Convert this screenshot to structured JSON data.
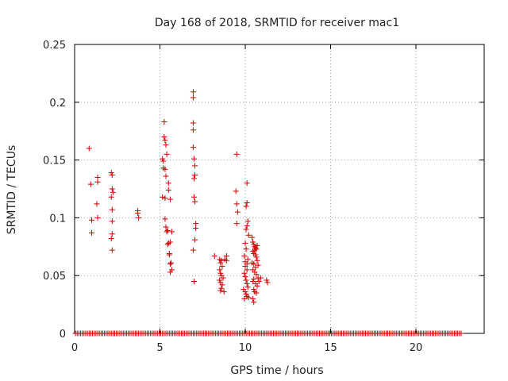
{
  "chart_data": {
    "type": "scatter",
    "title": "Day 168 of 2018, SRMTID for receiver mac1",
    "xlabel": "GPS time / hours",
    "ylabel": "SRMTID / TECUs",
    "xlim": [
      0,
      24
    ],
    "ylim": [
      0,
      0.25
    ],
    "xticks": [
      0,
      5,
      10,
      15,
      20
    ],
    "yticks": [
      0,
      0.05,
      0.1,
      0.15,
      0.2,
      0.25
    ],
    "xtick_labels": [
      "0",
      "5",
      "10",
      "15",
      "20"
    ],
    "ytick_labels": [
      "0",
      "0.05",
      "0.1",
      "0.15",
      "0.2",
      "0.25"
    ],
    "grid": true,
    "marker": "+",
    "color": "#cc0000",
    "baseline": {
      "y": 0,
      "x_start": 0.05,
      "x_end": 22.7,
      "step": 0.1
    },
    "series": [
      {
        "name": "mac1",
        "points": [
          [
            0.85,
            0.16
          ],
          [
            0.95,
            0.129
          ],
          [
            1.0,
            0.098
          ],
          [
            1.0,
            0.087
          ],
          [
            1.35,
            0.135
          ],
          [
            1.35,
            0.131
          ],
          [
            1.3,
            0.112
          ],
          [
            1.35,
            0.1
          ],
          [
            2.15,
            0.139
          ],
          [
            2.2,
            0.137
          ],
          [
            2.2,
            0.125
          ],
          [
            2.25,
            0.122
          ],
          [
            2.15,
            0.118
          ],
          [
            2.2,
            0.107
          ],
          [
            2.2,
            0.097
          ],
          [
            2.2,
            0.086
          ],
          [
            2.15,
            0.082
          ],
          [
            2.2,
            0.072
          ],
          [
            3.7,
            0.106
          ],
          [
            3.7,
            0.104
          ],
          [
            3.75,
            0.1
          ],
          [
            5.25,
            0.183
          ],
          [
            5.25,
            0.17
          ],
          [
            5.3,
            0.167
          ],
          [
            5.35,
            0.163
          ],
          [
            5.4,
            0.155
          ],
          [
            5.15,
            0.151
          ],
          [
            5.2,
            0.149
          ],
          [
            5.2,
            0.143
          ],
          [
            5.3,
            0.142
          ],
          [
            5.35,
            0.136
          ],
          [
            5.5,
            0.13
          ],
          [
            5.5,
            0.124
          ],
          [
            5.15,
            0.118
          ],
          [
            5.3,
            0.117
          ],
          [
            5.6,
            0.116
          ],
          [
            5.3,
            0.099
          ],
          [
            5.35,
            0.092
          ],
          [
            5.4,
            0.088
          ],
          [
            5.45,
            0.089
          ],
          [
            5.7,
            0.088
          ],
          [
            5.6,
            0.079
          ],
          [
            5.45,
            0.077
          ],
          [
            5.5,
            0.078
          ],
          [
            5.55,
            0.069
          ],
          [
            5.55,
            0.068
          ],
          [
            5.65,
            0.061
          ],
          [
            5.6,
            0.06
          ],
          [
            5.7,
            0.055
          ],
          [
            5.6,
            0.053
          ],
          [
            6.95,
            0.209
          ],
          [
            6.95,
            0.204
          ],
          [
            6.95,
            0.182
          ],
          [
            6.95,
            0.176
          ],
          [
            6.95,
            0.161
          ],
          [
            7.0,
            0.151
          ],
          [
            7.05,
            0.145
          ],
          [
            7.05,
            0.137
          ],
          [
            7.0,
            0.134
          ],
          [
            7.0,
            0.118
          ],
          [
            7.05,
            0.114
          ],
          [
            7.1,
            0.095
          ],
          [
            7.1,
            0.091
          ],
          [
            7.05,
            0.081
          ],
          [
            6.95,
            0.072
          ],
          [
            7.0,
            0.045
          ],
          [
            8.2,
            0.067
          ],
          [
            8.5,
            0.064
          ],
          [
            8.55,
            0.061
          ],
          [
            8.6,
            0.063
          ],
          [
            8.65,
            0.058
          ],
          [
            8.5,
            0.055
          ],
          [
            8.55,
            0.052
          ],
          [
            8.6,
            0.05
          ],
          [
            8.7,
            0.048
          ],
          [
            8.5,
            0.046
          ],
          [
            8.55,
            0.044
          ],
          [
            8.65,
            0.042
          ],
          [
            8.6,
            0.039
          ],
          [
            8.55,
            0.037
          ],
          [
            8.75,
            0.036
          ],
          [
            8.8,
            0.064
          ],
          [
            8.9,
            0.067
          ],
          [
            8.9,
            0.063
          ],
          [
            9.5,
            0.155
          ],
          [
            9.45,
            0.123
          ],
          [
            9.5,
            0.112
          ],
          [
            9.55,
            0.105
          ],
          [
            9.5,
            0.095
          ],
          [
            10.1,
            0.13
          ],
          [
            10.05,
            0.11
          ],
          [
            10.1,
            0.113
          ],
          [
            10.15,
            0.097
          ],
          [
            10.1,
            0.093
          ],
          [
            10.05,
            0.09
          ],
          [
            10.2,
            0.085
          ],
          [
            10.0,
            0.078
          ],
          [
            10.05,
            0.073
          ],
          [
            9.95,
            0.067
          ],
          [
            10.0,
            0.062
          ],
          [
            10.1,
            0.06
          ],
          [
            10.15,
            0.064
          ],
          [
            10.0,
            0.058
          ],
          [
            10.1,
            0.055
          ],
          [
            9.95,
            0.052
          ],
          [
            10.0,
            0.049
          ],
          [
            10.05,
            0.046
          ],
          [
            10.1,
            0.043
          ],
          [
            10.15,
            0.04
          ],
          [
            9.9,
            0.038
          ],
          [
            10.0,
            0.036
          ],
          [
            10.05,
            0.034
          ],
          [
            10.1,
            0.032
          ],
          [
            10.2,
            0.031
          ],
          [
            9.95,
            0.03
          ],
          [
            10.4,
            0.083
          ],
          [
            10.45,
            0.079
          ],
          [
            10.5,
            0.077
          ],
          [
            10.55,
            0.075
          ],
          [
            10.6,
            0.074
          ],
          [
            10.7,
            0.076
          ],
          [
            10.65,
            0.073
          ],
          [
            10.55,
            0.072
          ],
          [
            10.45,
            0.071
          ],
          [
            10.5,
            0.069
          ],
          [
            10.6,
            0.068
          ],
          [
            10.65,
            0.066
          ],
          [
            10.7,
            0.063
          ],
          [
            10.4,
            0.061
          ],
          [
            10.5,
            0.06
          ],
          [
            10.75,
            0.059
          ],
          [
            10.6,
            0.057
          ],
          [
            10.45,
            0.055
          ],
          [
            10.55,
            0.053
          ],
          [
            10.65,
            0.051
          ],
          [
            10.75,
            0.048
          ],
          [
            10.5,
            0.047
          ],
          [
            10.45,
            0.045
          ],
          [
            10.6,
            0.043
          ],
          [
            10.7,
            0.041
          ],
          [
            10.5,
            0.038
          ],
          [
            10.55,
            0.036
          ],
          [
            10.65,
            0.035
          ],
          [
            10.45,
            0.03
          ],
          [
            10.5,
            0.027
          ],
          [
            10.9,
            0.048
          ],
          [
            11.25,
            0.046
          ],
          [
            11.3,
            0.044
          ],
          [
            10.8,
            0.045
          ]
        ]
      }
    ]
  }
}
